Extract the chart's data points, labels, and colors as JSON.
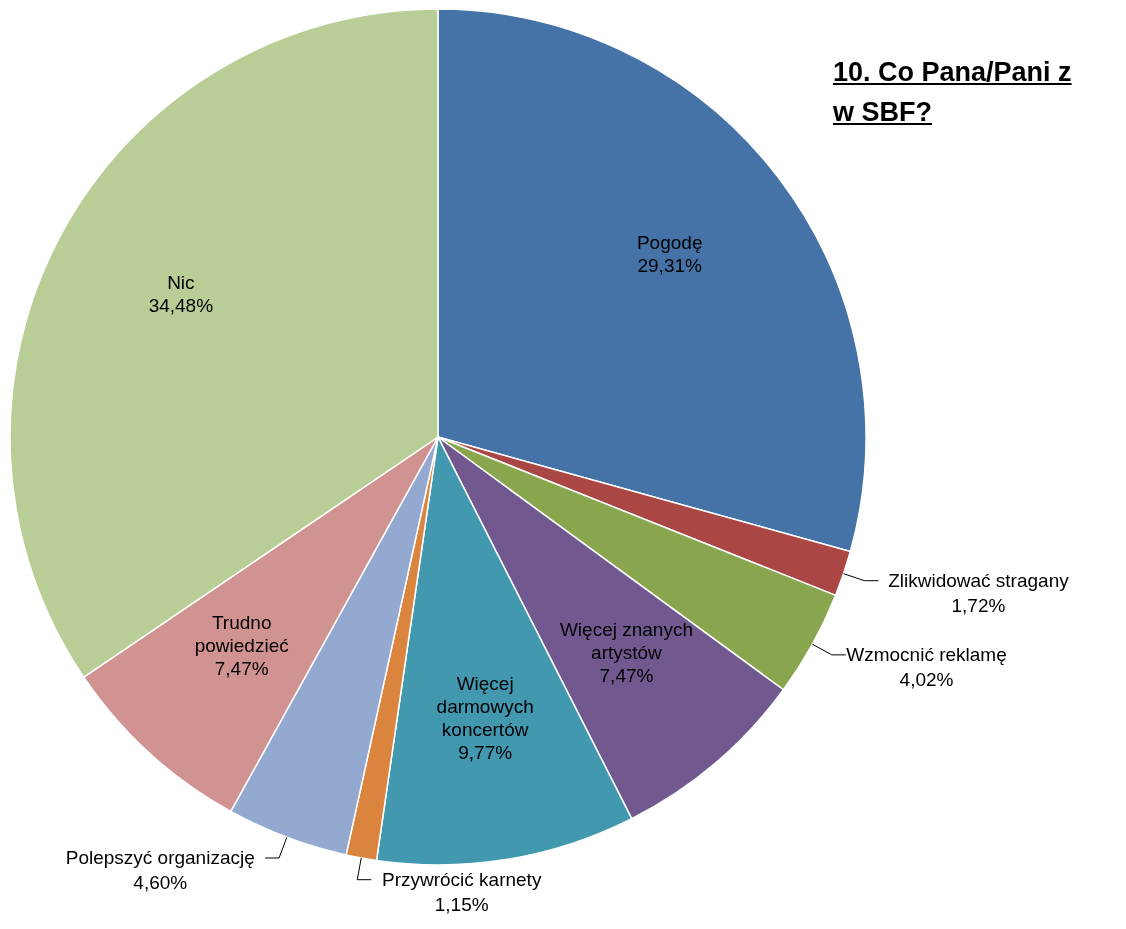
{
  "chart_data": {
    "type": "pie",
    "title": "10. Co Pana/Pani z\nw SBF?",
    "categories": [
      "Pogodę",
      "Zlikwidować stragany",
      "Wzmocnić reklamę",
      "Więcej znanych artystów",
      "Więcej darmowych koncertów",
      "Przywrócić karnety",
      "Polepszyć organizację",
      "Trudno powiedzieć",
      "Nic"
    ],
    "values": [
      29.31,
      1.72,
      4.02,
      7.47,
      9.77,
      1.15,
      4.6,
      7.47,
      34.48
    ],
    "value_labels": [
      "29,31%",
      "1,72%",
      "4,02%",
      "7,47%",
      "9,77%",
      "1,15%",
      "4,60%",
      "7,47%",
      "34,48%"
    ],
    "colors": [
      "#4572a7",
      "#aa4643",
      "#89a54e",
      "#71588f",
      "#4198af",
      "#db843d",
      "#93a9cf",
      "#d19392",
      "#b9cd96"
    ],
    "legend": false
  }
}
